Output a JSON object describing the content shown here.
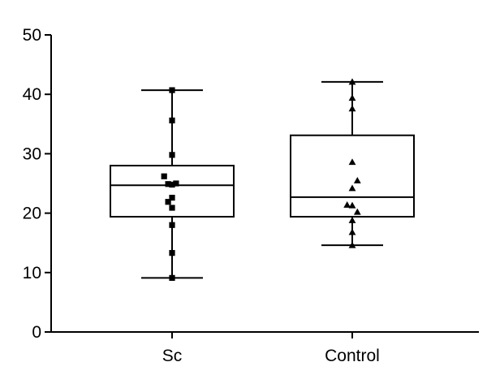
{
  "chart_data": {
    "type": "box",
    "title": "",
    "xlabel": "",
    "ylabel": "",
    "ylim": [
      0,
      50
    ],
    "yticks": [
      0,
      10,
      20,
      30,
      40,
      50
    ],
    "categories": [
      "Sc",
      "Control"
    ],
    "colors": {
      "stroke": "#000000",
      "marker": "#000000",
      "background": "#ffffff"
    },
    "groups": [
      {
        "name": "Sc",
        "marker": "square",
        "whisker_low": 9.1,
        "q1": 19.4,
        "median": 24.7,
        "q3": 28.0,
        "whisker_high": 40.7,
        "points": [
          {
            "x": 0,
            "y": 40.7
          },
          {
            "x": 0,
            "y": 35.6
          },
          {
            "x": 0,
            "y": 29.8
          },
          {
            "x": -1.4,
            "y": 26.2
          },
          {
            "x": -0.7,
            "y": 24.9
          },
          {
            "x": 0,
            "y": 24.8
          },
          {
            "x": 0.7,
            "y": 25.0
          },
          {
            "x": -0.7,
            "y": 21.9
          },
          {
            "x": 0,
            "y": 22.6
          },
          {
            "x": 0,
            "y": 20.9
          },
          {
            "x": 0,
            "y": 18.0
          },
          {
            "x": 0,
            "y": 13.3
          },
          {
            "x": 0,
            "y": 9.1
          }
        ]
      },
      {
        "name": "Control",
        "marker": "triangle",
        "whisker_low": 14.6,
        "q1": 19.4,
        "median": 22.7,
        "q3": 33.1,
        "whisker_high": 42.1,
        "points": [
          {
            "x": 0,
            "y": 42.1
          },
          {
            "x": 0,
            "y": 39.4
          },
          {
            "x": 0,
            "y": 37.6
          },
          {
            "x": 0,
            "y": 28.6
          },
          {
            "x": 0.9,
            "y": 25.5
          },
          {
            "x": 0,
            "y": 24.2
          },
          {
            "x": -0.9,
            "y": 21.4
          },
          {
            "x": 0,
            "y": 21.3
          },
          {
            "x": 0.9,
            "y": 20.2
          },
          {
            "x": 0,
            "y": 18.8
          },
          {
            "x": 0,
            "y": 16.8
          },
          {
            "x": 0,
            "y": 14.6
          }
        ]
      }
    ]
  }
}
